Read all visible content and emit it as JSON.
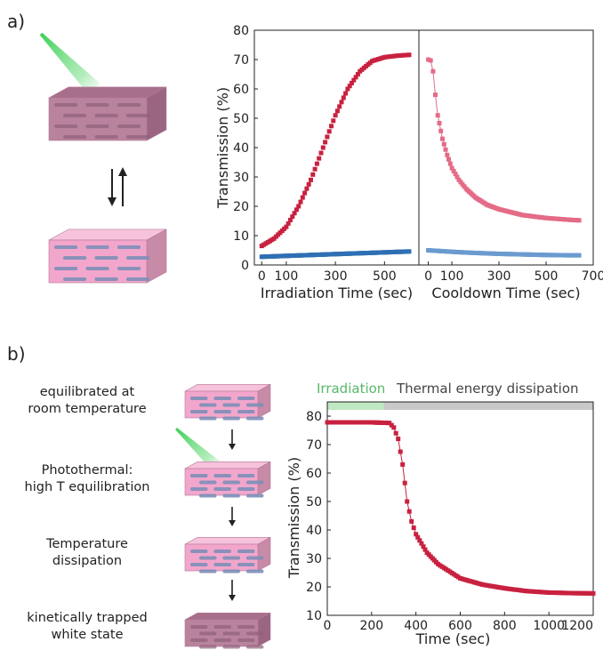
{
  "panels": {
    "a": {
      "label": "a)"
    },
    "b": {
      "label": "b)"
    }
  },
  "steps": [
    {
      "line1": "equilibrated at",
      "line2": "room temperature"
    },
    {
      "line1": "Photothermal:",
      "line2": "high T equilibration"
    },
    {
      "line1": "Temperature",
      "line2": "dissipation"
    },
    {
      "line1": "kinetically trapped",
      "line2": "white state"
    }
  ],
  "colors": {
    "red": "#c8213f",
    "red_light": "#e46b87",
    "blue": "#2f6fb3",
    "blue_light": "#6a9bd0",
    "green": "#2ecc4b",
    "irradiation_label": "#56b868",
    "bar_green": "#bfe8c3",
    "bar_gray": "#c8c8c8",
    "block_pink": "#f2a6cc",
    "block_pink_dark": "#c78aa7"
  },
  "chart_data": [
    {
      "type": "scatter",
      "panel": "a-left",
      "ylabel": "Transmission (%)",
      "xlabel": "Irradiation Time (sec)",
      "xlim": [
        -30,
        640
      ],
      "ylim": [
        0,
        80
      ],
      "x_ticks": [
        0,
        100,
        300,
        500
      ],
      "y_ticks": [
        0,
        10,
        20,
        30,
        40,
        50,
        60,
        70,
        80
      ],
      "series": [
        {
          "name": "",
          "color": "red",
          "x": [
            0,
            50,
            100,
            150,
            200,
            250,
            300,
            350,
            400,
            450,
            500,
            550,
            600
          ],
          "y": [
            6.5,
            9,
            13,
            20,
            29,
            40,
            51,
            60,
            66,
            69.5,
            70.8,
            71.3,
            71.6
          ]
        },
        {
          "name": "",
          "color": "blue",
          "x": [
            0,
            100,
            200,
            300,
            400,
            500,
            600
          ],
          "y": [
            2.8,
            3.1,
            3.4,
            3.7,
            4.0,
            4.3,
            4.6
          ]
        }
      ]
    },
    {
      "type": "scatter",
      "panel": "a-right",
      "xlabel": "Cooldown Time (sec)",
      "xlim": [
        -40,
        700
      ],
      "ylim": [
        0,
        80
      ],
      "x_ticks": [
        0,
        100,
        300,
        500,
        700
      ],
      "series": [
        {
          "name": "",
          "color": "red_light",
          "x": [
            0,
            10,
            20,
            30,
            40,
            60,
            80,
            100,
            130,
            160,
            200,
            250,
            300,
            350,
            400,
            450,
            500,
            550,
            600,
            640
          ],
          "y": [
            70,
            69.7,
            66,
            58,
            51,
            43,
            37.5,
            33,
            29,
            26,
            23,
            20.5,
            19,
            18,
            17,
            16.5,
            16,
            15.7,
            15.4,
            15.2
          ]
        },
        {
          "name": "",
          "color": "blue_light",
          "x": [
            0,
            100,
            200,
            300,
            400,
            500,
            600,
            640
          ],
          "y": [
            5.0,
            4.5,
            4.1,
            3.8,
            3.6,
            3.4,
            3.3,
            3.3
          ]
        }
      ]
    },
    {
      "type": "scatter",
      "panel": "b",
      "ylabel": "Transmission (%)",
      "xlabel": "Time (sec)",
      "xlim": [
        0,
        1200
      ],
      "ylim": [
        10,
        85
      ],
      "x_ticks": [
        0,
        200,
        400,
        600,
        800,
        1000,
        1200
      ],
      "y_ticks": [
        10,
        20,
        30,
        40,
        50,
        60,
        70,
        80
      ],
      "top_bar": [
        {
          "label": "Irradiation",
          "from": 0,
          "to": 255,
          "color": "bar_green",
          "label_color": "irradiation_label"
        },
        {
          "label": "Thermal energy dissipation",
          "from": 255,
          "to": 1200,
          "color": "bar_gray",
          "label_color": ""
        }
      ],
      "series": [
        {
          "name": "",
          "color": "red",
          "x": [
            0,
            100,
            200,
            280,
            300,
            320,
            340,
            360,
            380,
            400,
            450,
            500,
            600,
            700,
            800,
            900,
            1000,
            1100,
            1200
          ],
          "y": [
            77.8,
            77.8,
            77.8,
            77.6,
            76,
            72,
            63,
            50,
            43,
            38.5,
            32,
            28,
            23,
            20.8,
            19.5,
            18.5,
            18,
            17.8,
            17.7
          ]
        }
      ]
    }
  ]
}
